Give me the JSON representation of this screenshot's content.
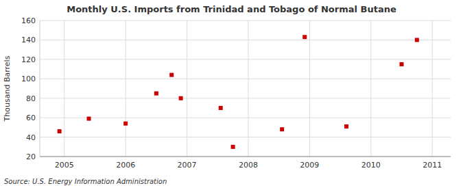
{
  "chart_data": {
    "type": "scatter",
    "title": "Monthly U.S. Imports from Trinidad and Tobago of Normal Butane",
    "ylabel": "Thousand Barrels",
    "source": "Source: U.S. Energy Information Administration",
    "x": [
      2004.92,
      2005.4,
      2006.0,
      2006.5,
      2006.75,
      2006.9,
      2007.55,
      2007.75,
      2008.55,
      2008.92,
      2009.6,
      2010.5,
      2010.75
    ],
    "values": [
      46,
      59,
      54,
      85,
      104,
      80,
      70,
      30,
      48,
      143,
      51,
      115,
      140
    ],
    "color": "#cc0000",
    "marker": "square",
    "xlim": [
      2004.6,
      2011.3
    ],
    "ylim": [
      20,
      160
    ],
    "xticks": [
      2005,
      2006,
      2007,
      2008,
      2009,
      2010,
      2011
    ],
    "yticks": [
      20,
      40,
      60,
      80,
      100,
      120,
      140,
      160
    ],
    "grid": true
  }
}
